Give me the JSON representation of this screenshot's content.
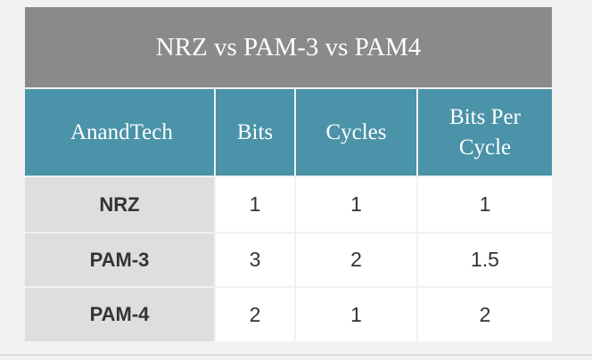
{
  "table": {
    "title": "NRZ vs PAM-3 vs PAM4",
    "header": [
      "AnandTech",
      "Bits",
      "Cycles",
      "Bits Per Cycle"
    ],
    "rows": [
      [
        "NRZ",
        "1",
        "1",
        "1"
      ],
      [
        "PAM-3",
        "3",
        "2",
        "1.5"
      ],
      [
        "PAM-4",
        "2",
        "1",
        "2"
      ]
    ]
  }
}
